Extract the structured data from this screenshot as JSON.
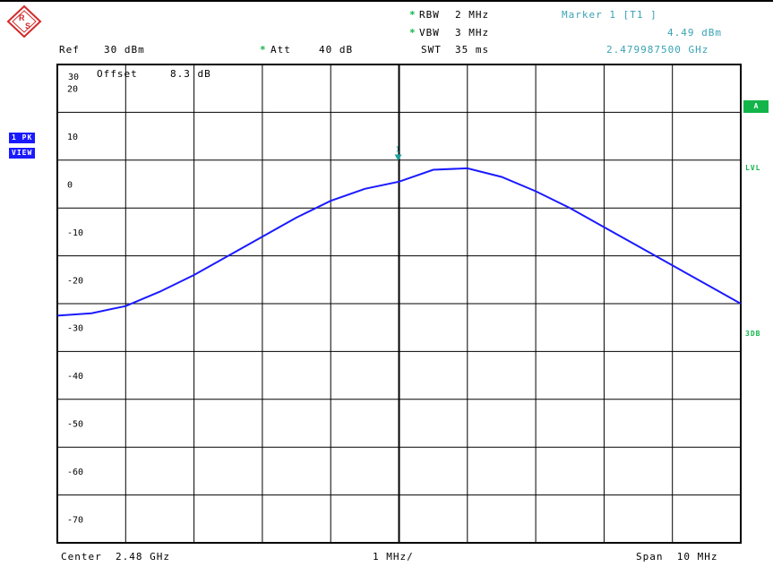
{
  "header": {
    "rbw_label": "RBW",
    "rbw_value": "2 MHz",
    "vbw_label": "VBW",
    "vbw_value": "3 MHz",
    "swt_label": "SWT",
    "swt_value": "35 ms",
    "ref_label": "Ref",
    "ref_value": "30 dBm",
    "att_label": "Att",
    "att_value": "40 dB",
    "offset_label": "Offset",
    "offset_value": "8.3 dB",
    "marker_title": "Marker 1 [T1 ]",
    "marker_level": "4.49 dBm",
    "marker_freq": "2.479987500 GHz",
    "star_glyph": "*"
  },
  "side": {
    "trace_mode": "1 PK",
    "trace_view": "VIEW",
    "a_badge": "A",
    "lvl": "LVL",
    "db3": "3DB"
  },
  "footer": {
    "center": "Center  2.48 GHz",
    "div": "1 MHz/",
    "span": "Span  10 MHz"
  },
  "colors": {
    "trace": "#1a1aff",
    "marker": "#1aa39a",
    "grid": "#000000"
  },
  "chart_data": {
    "type": "line",
    "title": "",
    "xlabel": "",
    "ylabel": "",
    "xlim": [
      2.475,
      2.485
    ],
    "ylim": [
      -75,
      25
    ],
    "yticks": [
      20,
      10,
      0,
      -10,
      -20,
      -30,
      -40,
      -50,
      -60,
      -70
    ],
    "ytick_labels": [
      "20",
      "10",
      "0",
      "-10",
      "-20",
      "-30",
      "-40",
      "-50",
      "-60",
      "-70"
    ],
    "top_label": "30",
    "grid": true,
    "marker": {
      "label": "1",
      "x": 2.4799875,
      "y": 4.49
    },
    "series": [
      {
        "x": [
          2.475,
          2.4755,
          2.476,
          2.4765,
          2.477,
          2.4775,
          2.478,
          2.4785,
          2.479,
          2.4795,
          2.48,
          2.4805,
          2.481,
          2.4815,
          2.482,
          2.4825,
          2.483,
          2.4835,
          2.484,
          2.4845,
          2.485
        ],
        "values": [
          -27.5,
          -27,
          -25.5,
          -22.5,
          -19,
          -15,
          -11,
          -7,
          -3.5,
          -1,
          0.5,
          3,
          3.3,
          1.5,
          -1.5,
          -5,
          -9,
          -13,
          -17,
          -21,
          -25
        ]
      }
    ]
  }
}
